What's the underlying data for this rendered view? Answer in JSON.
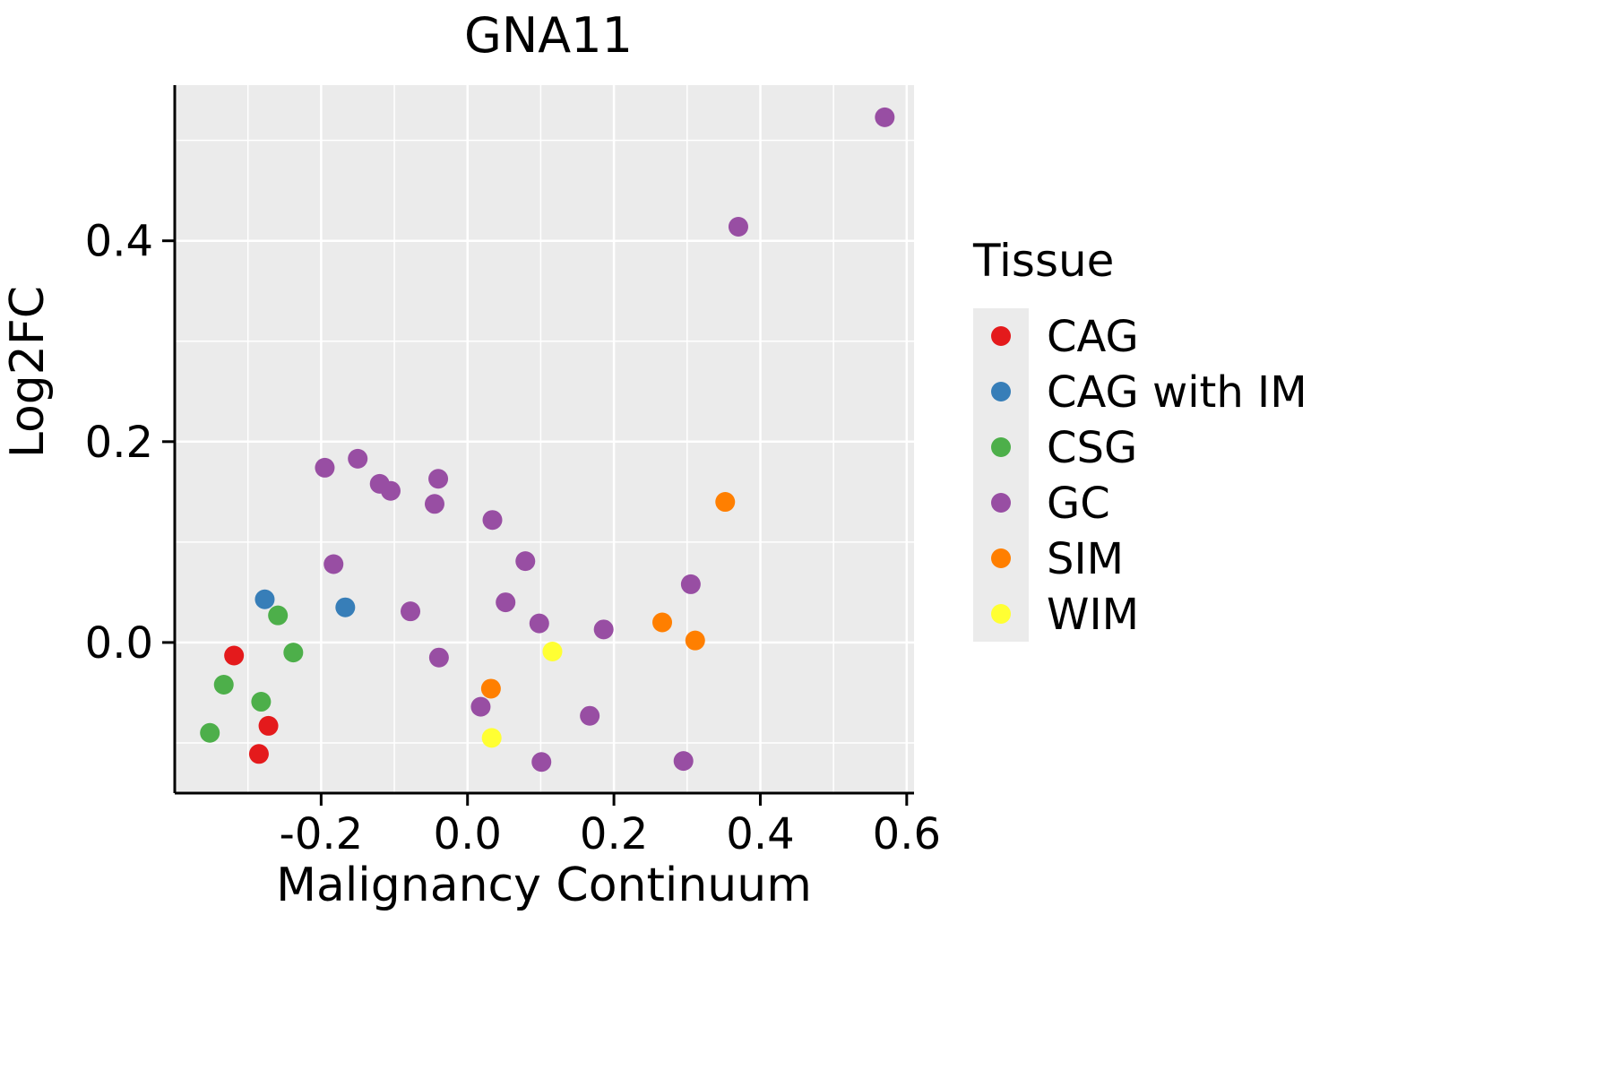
{
  "title": "GNA11",
  "chart_data": {
    "type": "scatter",
    "title": "GNA11",
    "xlabel": "Malignancy Continuum",
    "ylabel": "Log2FC",
    "xlim": [
      -0.4,
      0.61
    ],
    "ylim": [
      -0.15,
      0.555
    ],
    "grid": true,
    "panel_bg": "#ebebeb",
    "grid_color": "#ffffff",
    "axis_color": "#000000",
    "x_major_ticks": [
      -0.2,
      0.0,
      0.2,
      0.4,
      0.6
    ],
    "x_tick_labels": [
      "-0.2",
      "0.0",
      "0.2",
      "0.4",
      "0.6"
    ],
    "x_minor_ticks": [
      -0.3,
      -0.1,
      0.1,
      0.3,
      0.5
    ],
    "y_major_ticks": [
      0.0,
      0.2,
      0.4
    ],
    "y_tick_labels": [
      "0.0",
      "0.2",
      "0.4"
    ],
    "y_minor_ticks": [
      -0.1,
      0.1,
      0.3,
      0.5
    ],
    "legend_title": "Tissue",
    "legend_position": "right",
    "series": [
      {
        "name": "CAG",
        "color": "#e41a1c",
        "points": [
          [
            -0.319,
            -0.013
          ],
          [
            -0.272,
            -0.083
          ],
          [
            -0.285,
            -0.111
          ]
        ]
      },
      {
        "name": "CAG with IM",
        "color": "#377eb8",
        "points": [
          [
            -0.277,
            0.043
          ],
          [
            -0.167,
            0.035
          ]
        ]
      },
      {
        "name": "CSG",
        "color": "#4daf4a",
        "points": [
          [
            -0.259,
            0.027
          ],
          [
            -0.238,
            -0.01
          ],
          [
            -0.333,
            -0.042
          ],
          [
            -0.282,
            -0.059
          ],
          [
            -0.352,
            -0.09
          ]
        ]
      },
      {
        "name": "GC",
        "color": "#984ea3",
        "points": [
          [
            0.57,
            0.523
          ],
          [
            0.37,
            0.414
          ],
          [
            -0.195,
            0.174
          ],
          [
            -0.15,
            0.183
          ],
          [
            -0.12,
            0.158
          ],
          [
            -0.105,
            0.151
          ],
          [
            -0.04,
            0.163
          ],
          [
            -0.045,
            0.138
          ],
          [
            0.034,
            0.122
          ],
          [
            -0.183,
            0.078
          ],
          [
            0.079,
            0.081
          ],
          [
            -0.078,
            0.031
          ],
          [
            0.052,
            0.04
          ],
          [
            0.098,
            0.019
          ],
          [
            0.186,
            0.013
          ],
          [
            0.305,
            0.058
          ],
          [
            -0.039,
            -0.015
          ],
          [
            0.018,
            -0.064
          ],
          [
            0.167,
            -0.073
          ],
          [
            0.101,
            -0.119
          ],
          [
            0.295,
            -0.118
          ]
        ]
      },
      {
        "name": "SIM",
        "color": "#ff7f00",
        "points": [
          [
            0.352,
            0.14
          ],
          [
            0.266,
            0.02
          ],
          [
            0.311,
            0.002
          ],
          [
            0.032,
            -0.046
          ]
        ]
      },
      {
        "name": "WIM",
        "color": "#ffff33",
        "points": [
          [
            0.116,
            -0.009
          ],
          [
            0.033,
            -0.095
          ]
        ]
      }
    ]
  },
  "layout_labels": {
    "panel": "plot-panel"
  }
}
